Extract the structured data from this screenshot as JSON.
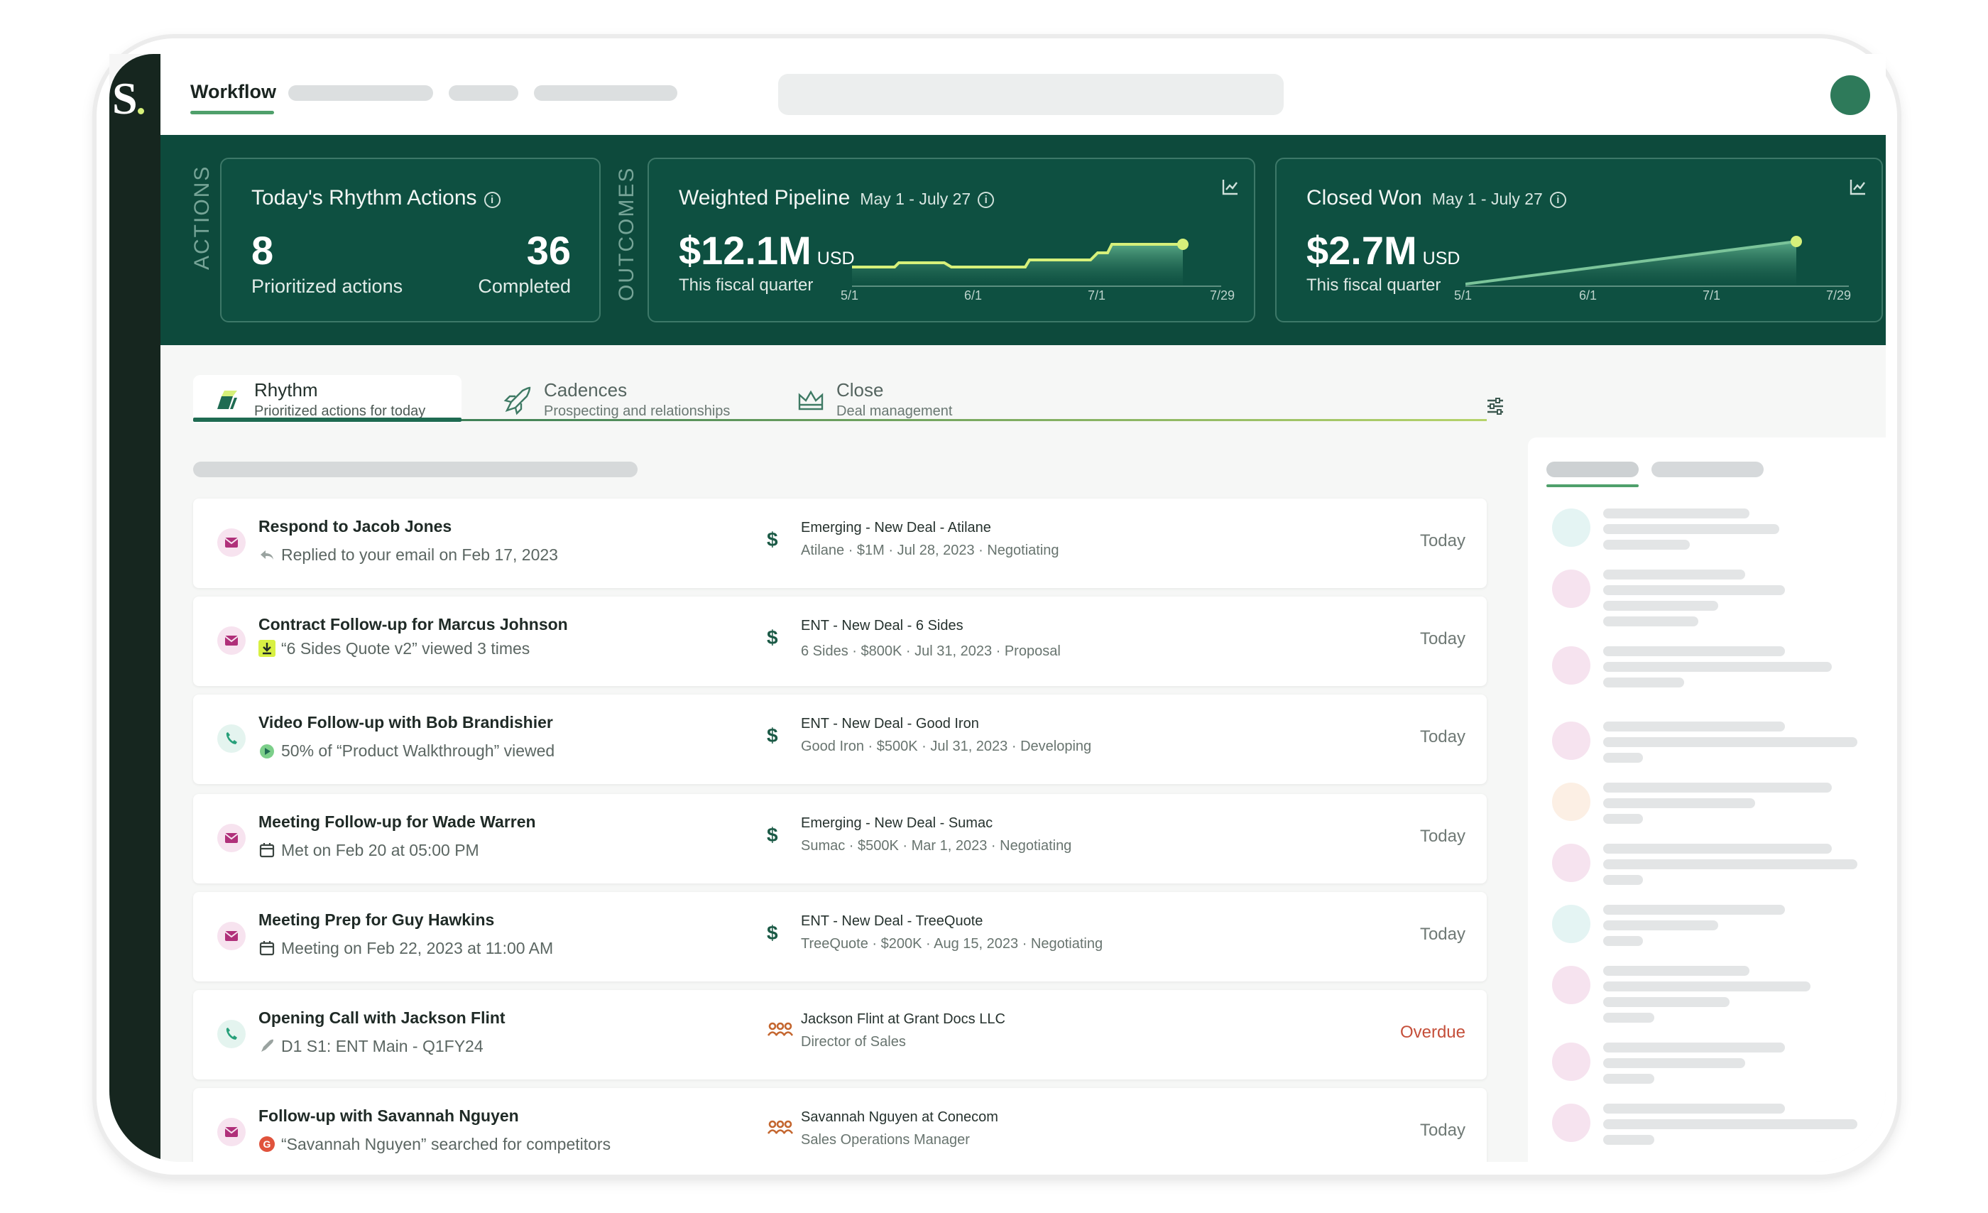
{
  "brand": {
    "logo_text": "S",
    "accent": "#d6f07a",
    "dark": "#16261f",
    "band": "#0d4a3c"
  },
  "header": {
    "nav_label": "Workflow"
  },
  "metrics": {
    "actions_label": "ACTIONS",
    "outcomes_label": "OUTCOMES",
    "rhythm": {
      "title": "Today's Rhythm Actions",
      "prioritized_value": "8",
      "prioritized_label": "Prioritized actions",
      "completed_value": "36",
      "completed_label": "Completed"
    },
    "pipeline": {
      "title": "Weighted Pipeline",
      "range": "May 1 - July 27",
      "amount": "$12.1M",
      "currency": "USD",
      "subtitle": "This fiscal quarter",
      "x_ticks": [
        "5/1",
        "6/1",
        "7/1",
        "7/29"
      ]
    },
    "closed": {
      "title": "Closed Won",
      "range": "May 1 - July 27",
      "amount": "$2.7M",
      "currency": "USD",
      "subtitle": "This fiscal quarter",
      "x_ticks": [
        "5/1",
        "6/1",
        "7/1",
        "7/29"
      ]
    }
  },
  "tabs": [
    {
      "label": "Rhythm",
      "sub": "Prioritized actions for today"
    },
    {
      "label": "Cadences",
      "sub": "Prospecting and relationships"
    },
    {
      "label": "Close",
      "sub": "Deal management"
    }
  ],
  "rows": [
    {
      "type": "mail",
      "title": "Respond to Jacob Jones",
      "detail": "Replied to your email on Feb 17, 2023",
      "detail_icon": "reply-icon",
      "deal_icon": "dollar-icon",
      "deal_title": "Emerging - New Deal - Atilane",
      "deal_meta": "Atilane  ·  $1M  ·  Jul 28, 2023  ·  Negotiating",
      "due": "Today"
    },
    {
      "type": "mail",
      "title": "Contract Follow-up for Marcus Johnson",
      "detail": "“6 Sides Quote v2” viewed 3 times",
      "detail_icon": "download-icon",
      "deal_icon": "dollar-icon",
      "deal_title": "ENT - New Deal - 6 Sides",
      "deal_meta": "6 Sides  ·  $800K  ·  Jul 31, 2023  ·  Proposal",
      "due": "Today"
    },
    {
      "type": "phone",
      "title": "Video Follow-up with Bob Brandishier",
      "detail": "50% of “Product Walkthrough” viewed",
      "detail_icon": "video-icon",
      "deal_icon": "dollar-icon",
      "deal_title": "ENT - New Deal - Good Iron",
      "deal_meta": "Good Iron  ·  $500K  ·  Jul 31, 2023  ·  Developing",
      "due": "Today"
    },
    {
      "type": "mail",
      "title": "Meeting Follow-up for Wade Warren",
      "detail": "Met on Feb 20 at 05:00 PM",
      "detail_icon": "calendar-icon",
      "deal_icon": "dollar-icon",
      "deal_title": "Emerging - New Deal - Sumac",
      "deal_meta": "Sumac  ·  $500K  ·  Mar 1, 2023  ·  Negotiating",
      "due": "Today"
    },
    {
      "type": "mail",
      "title": "Meeting Prep for Guy Hawkins",
      "detail": "Meeting on Feb 22, 2023 at 11:00 AM",
      "detail_icon": "calendar-icon",
      "deal_icon": "dollar-icon",
      "deal_title": "ENT - New Deal - TreeQuote",
      "deal_meta": "TreeQuote  ·  $200K  ·  Aug 15, 2023  ·  Negotiating",
      "due": "Today"
    },
    {
      "type": "phone",
      "title": "Opening Call with Jackson Flint",
      "detail": "D1 S1: ENT Main - Q1FY24",
      "detail_icon": "rocket-icon",
      "deal_icon": "people-icon",
      "deal_title": "Jackson Flint  at  Grant Docs LLC",
      "deal_meta": "Director of Sales",
      "due": "Overdue"
    },
    {
      "type": "mail",
      "title": "Follow-up with Savannah Nguyen",
      "detail": "“Savannah Nguyen” searched for competitors",
      "detail_icon": "search-alert-icon",
      "deal_icon": "people-icon",
      "deal_title": "Savannah Nguyen  at  Conecom",
      "deal_meta": "Sales Operations Manager",
      "due": "Today"
    }
  ]
}
